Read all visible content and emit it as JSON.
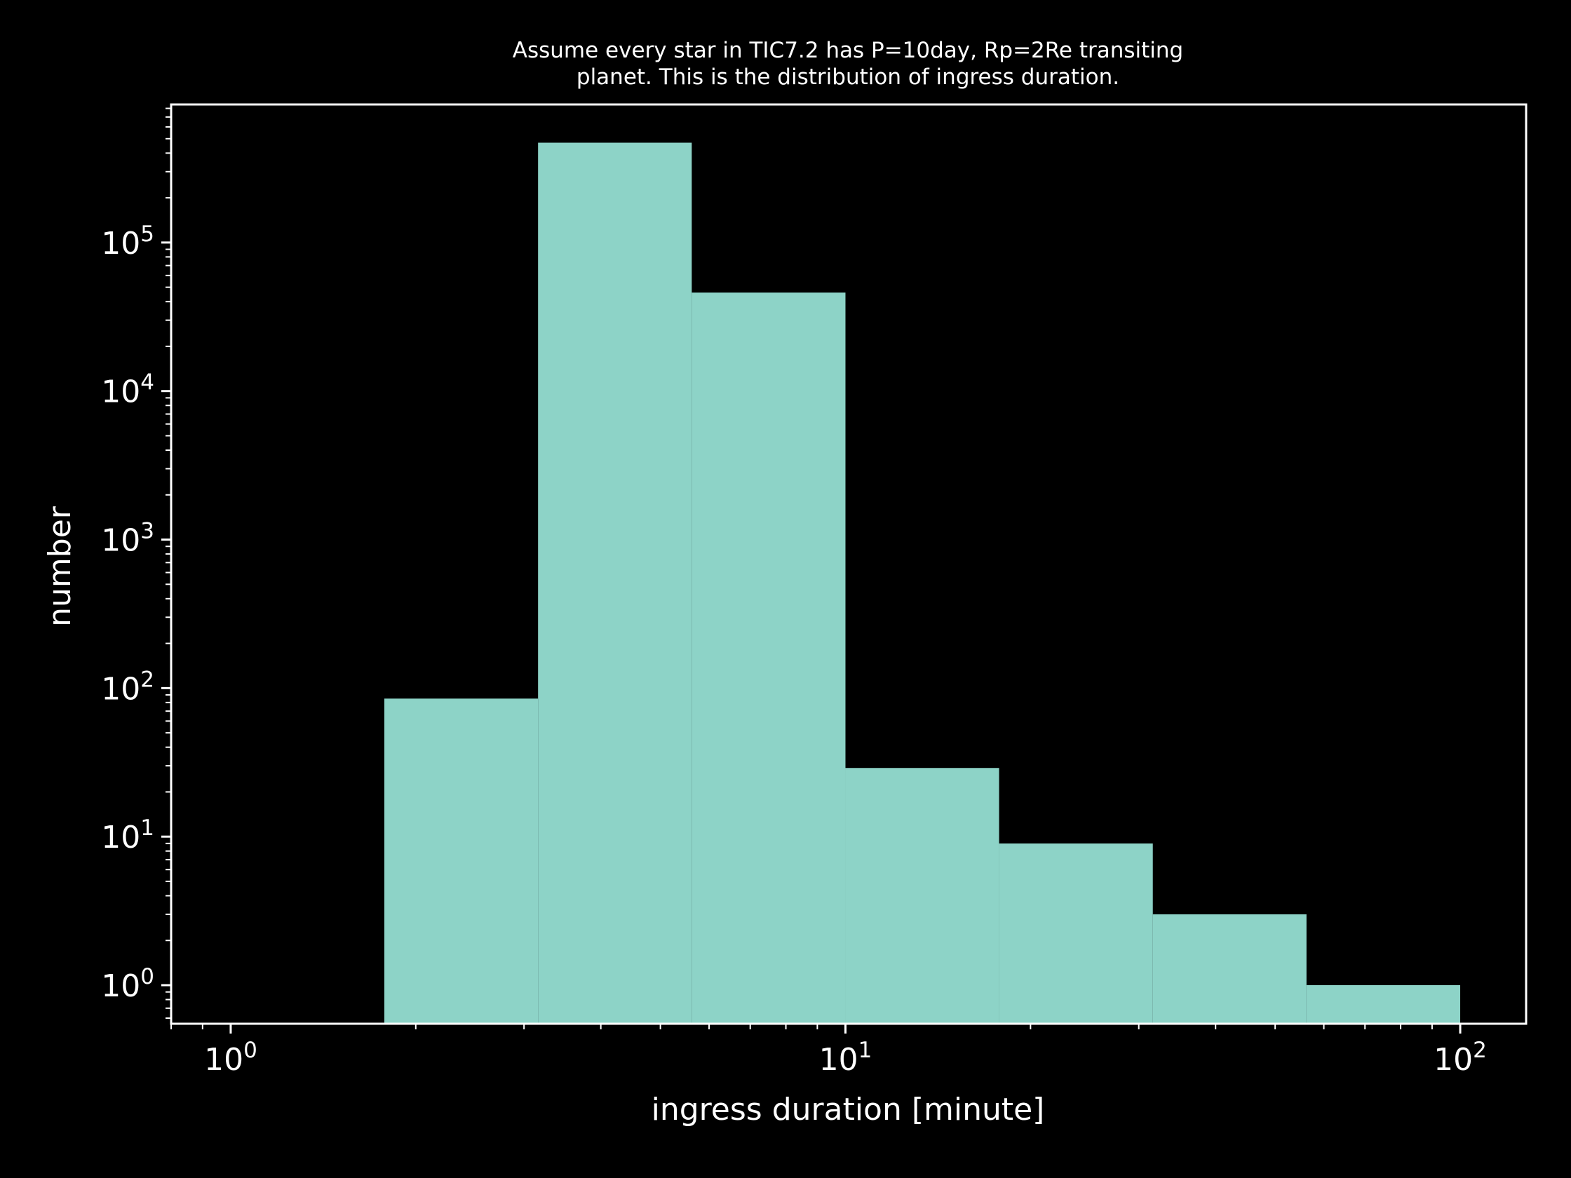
{
  "colors": {
    "background": "#000000",
    "foreground": "#ffffff",
    "bar": "#8dd3c7"
  },
  "chart_data": {
    "type": "bar",
    "title_lines": [
      "Assume every star in TIC7.2 has P=10day, Rp=2Re transiting",
      "planet. This is the distribution of ingress duration."
    ],
    "xlabel": "ingress duration [minute]",
    "ylabel": "number",
    "xscale": "log",
    "yscale": "log",
    "xlim": [
      0.8,
      128
    ],
    "ylim": [
      0.55,
      850000
    ],
    "grid": false,
    "legend": "none",
    "x_ticks": [
      1,
      10,
      100
    ],
    "y_ticks": [
      1,
      10,
      100,
      1000,
      10000,
      100000
    ],
    "bins": [
      {
        "x0": 1.778,
        "x1": 3.162,
        "count": 85
      },
      {
        "x0": 3.162,
        "x1": 5.623,
        "count": 470000
      },
      {
        "x0": 5.623,
        "x1": 10.0,
        "count": 46000
      },
      {
        "x0": 10.0,
        "x1": 17.78,
        "count": 29
      },
      {
        "x0": 17.78,
        "x1": 31.62,
        "count": 9
      },
      {
        "x0": 31.62,
        "x1": 56.23,
        "count": 3
      },
      {
        "x0": 56.23,
        "x1": 100.0,
        "count": 1
      }
    ]
  }
}
